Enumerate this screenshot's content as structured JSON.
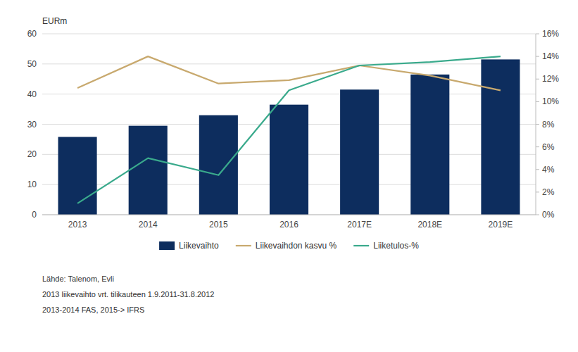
{
  "chart_data": {
    "type": "bar",
    "ylabel": "EURm",
    "categories": [
      "2013",
      "2014",
      "2015",
      "2016",
      "2017E",
      "2018E",
      "2019E"
    ],
    "series": [
      {
        "name": "Liikevaihto",
        "type": "bar",
        "color": "#0d2d5e",
        "values": [
          25.8,
          29.5,
          33.0,
          36.5,
          41.5,
          46.5,
          51.5
        ]
      },
      {
        "name": "Liikevaihdon kasvu %",
        "type": "line",
        "color": "#c8a96e",
        "axis": "y2",
        "values": [
          11.2,
          14.0,
          11.6,
          11.9,
          13.2,
          12.3,
          11.0
        ]
      },
      {
        "name": "Liiketulos-%",
        "type": "line",
        "color": "#3aaa8c",
        "axis": "y2",
        "values": [
          1.0,
          5.0,
          3.5,
          11.0,
          13.2,
          13.5,
          14.0
        ]
      }
    ],
    "ylim": [
      0,
      60
    ],
    "yticks": [
      0,
      10,
      20,
      30,
      40,
      50,
      60
    ],
    "y2lim": [
      0,
      16
    ],
    "y2ticks": [
      {
        "value": 0,
        "label": "0%"
      },
      {
        "value": 2,
        "label": "2%"
      },
      {
        "value": 4,
        "label": "4%"
      },
      {
        "value": 6,
        "label": "6%"
      },
      {
        "value": 8,
        "label": "8%"
      },
      {
        "value": 10,
        "label": "10%"
      },
      {
        "value": 12,
        "label": "12%"
      },
      {
        "value": 14,
        "label": "14%"
      },
      {
        "value": 16,
        "label": "16%"
      }
    ],
    "grid": true,
    "legend": "bottom",
    "annotations": [
      "Lähde: Talenom, Evli",
      "2013 liikevaihto vrt. tilikauteen 1.9.2011-31.8.2012",
      "2013-2014 FAS, 2015-> IFRS"
    ]
  }
}
